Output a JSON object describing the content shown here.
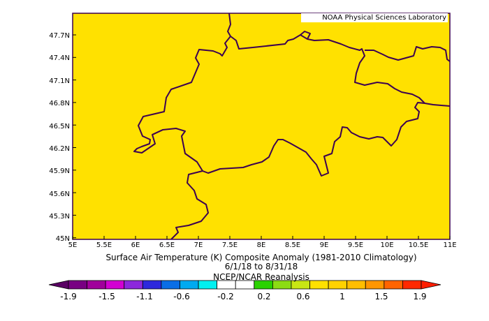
{
  "map": {
    "credit": "NOAA Physical Sciences Laboratory",
    "fill_color": "#ffe100",
    "border_color": "#3c0050",
    "lat_labels": [
      "47.7N",
      "47.4N",
      "47.1N",
      "46.8N",
      "46.5N",
      "46.2N",
      "45.9N",
      "45.6N",
      "45.3N",
      "45N"
    ],
    "lon_labels": [
      "5E",
      "5.5E",
      "6E",
      "6.5E",
      "7E",
      "7.5E",
      "8E",
      "8.5E",
      "9E",
      "9.5E",
      "10E",
      "10.5E",
      "11E"
    ],
    "title_line1": "Surface Air Temperature (K) Composite Anomaly (1981-2010 Climatology)",
    "title_line2": "6/1/18  to 8/31/18",
    "title_line3": "NCEP/NCAR Reanalysis"
  },
  "colorbar": {
    "tick_labels": [
      "-1.9",
      "-1.5",
      "-1.1",
      "-0.6",
      "-0.2",
      "0.2",
      "0.6",
      "1",
      "1.5",
      "1.9"
    ],
    "colors": [
      "#780082",
      "#a0009b",
      "#d200d2",
      "#8c28dc",
      "#2d28dc",
      "#0a6ee6",
      "#00aaf0",
      "#00f0f0",
      "#ffffff",
      "#ffffff",
      "#2ad200",
      "#8cdc14",
      "#c8e614",
      "#ffe100",
      "#ffd200",
      "#ffbe00",
      "#ff9600",
      "#ff6400",
      "#ff2800"
    ],
    "end_low_color": "#5a0064",
    "end_high_color": "#ff1e00"
  }
}
